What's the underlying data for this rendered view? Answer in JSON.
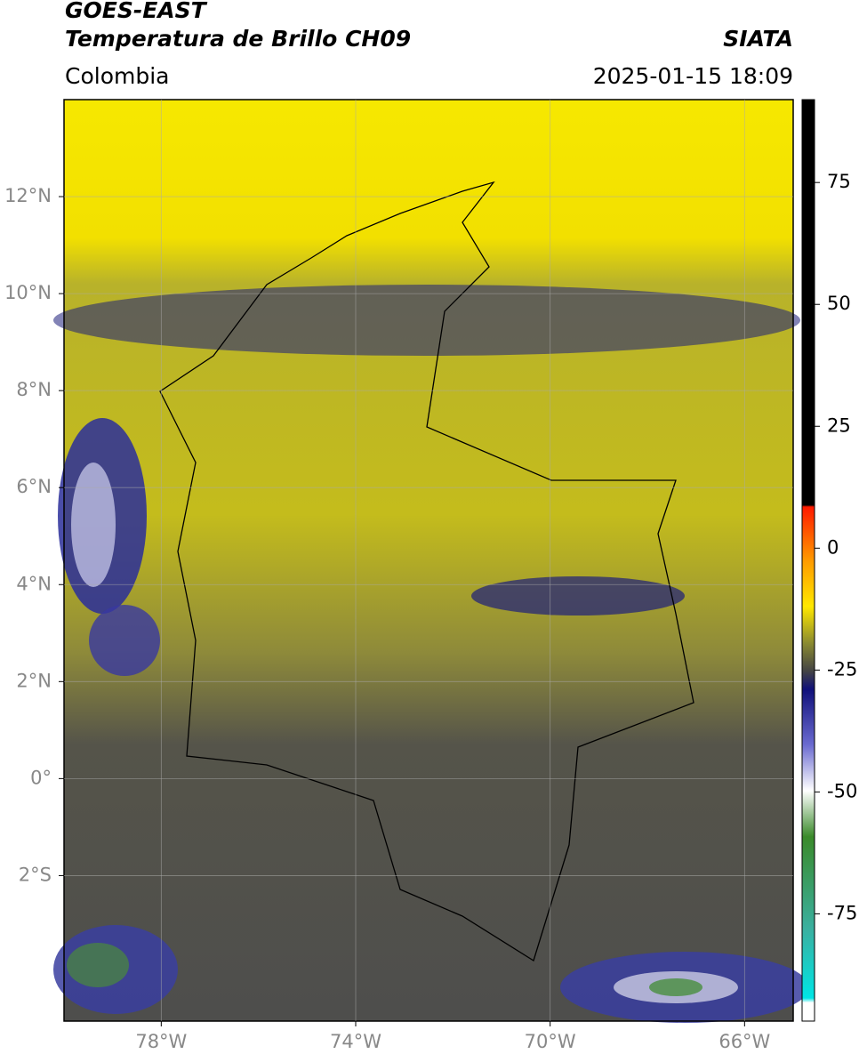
{
  "header": {
    "title": "GOES-EAST",
    "subtitle": "Temperatura de Brillo CH09",
    "region": "Colombia",
    "source": "SIATA",
    "datetime": "2025-01-15 18:09"
  },
  "map": {
    "xlim": [
      -80,
      -65
    ],
    "ylim": [
      -5,
      14
    ],
    "xticks": [
      {
        "value": -78,
        "label": "78°W"
      },
      {
        "value": -74,
        "label": "74°W"
      },
      {
        "value": -70,
        "label": "70°W"
      },
      {
        "value": -66,
        "label": "66°W"
      }
    ],
    "yticks": [
      {
        "value": 12,
        "label": "12°N"
      },
      {
        "value": 10,
        "label": "10°N"
      },
      {
        "value": 8,
        "label": "8°N"
      },
      {
        "value": 6,
        "label": "6°N"
      },
      {
        "value": 4,
        "label": "4°N"
      },
      {
        "value": 2,
        "label": "2°N"
      },
      {
        "value": 0,
        "label": "0°"
      },
      {
        "value": -2,
        "label": "2°S"
      }
    ],
    "grid": true
  },
  "colorbar": {
    "lim": [
      -97,
      92
    ],
    "ticks": [
      75,
      50,
      25,
      0,
      -25,
      -50,
      -75
    ]
  }
}
